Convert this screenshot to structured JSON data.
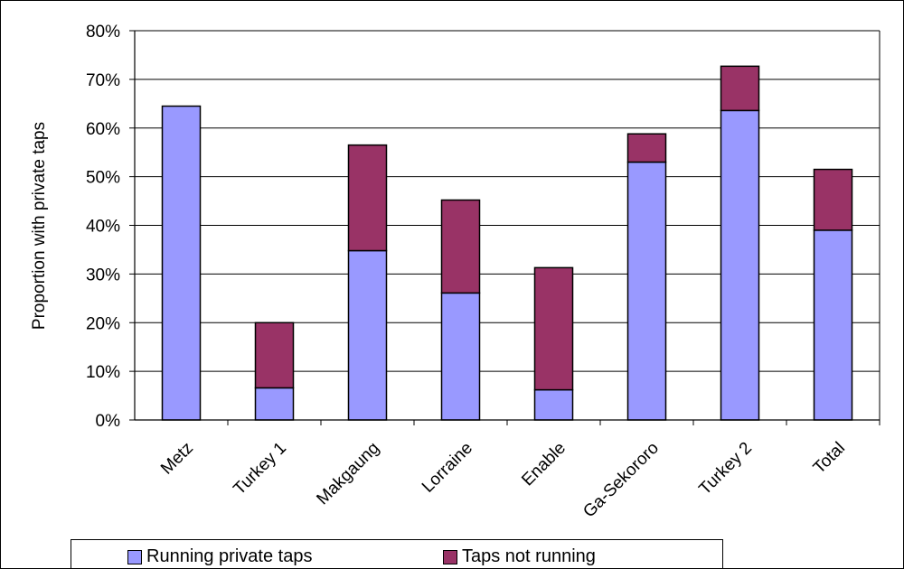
{
  "chart_data": {
    "type": "bar",
    "stacked": true,
    "title": "",
    "xlabel": "",
    "ylabel": "Proportion with private taps",
    "ylim": [
      0,
      80
    ],
    "yticks": [
      "0%",
      "10%",
      "20%",
      "30%",
      "40%",
      "50%",
      "60%",
      "70%",
      "80%"
    ],
    "grid": true,
    "legend_position": "bottom",
    "categories": [
      "Metz",
      "Turkey 1",
      "Makgaung",
      "Lorraine",
      "Enable",
      "Ga-Sekororo",
      "Turkey 2",
      "Total"
    ],
    "series": [
      {
        "name": "Running private taps",
        "color": "#9999ff",
        "values": [
          64.5,
          6.6,
          34.8,
          26.1,
          6.2,
          53.0,
          63.6,
          39.0
        ]
      },
      {
        "name": "Taps not running",
        "color": "#993366",
        "values": [
          0,
          13.4,
          21.7,
          19.1,
          25.1,
          5.8,
          9.1,
          12.5
        ]
      }
    ]
  }
}
